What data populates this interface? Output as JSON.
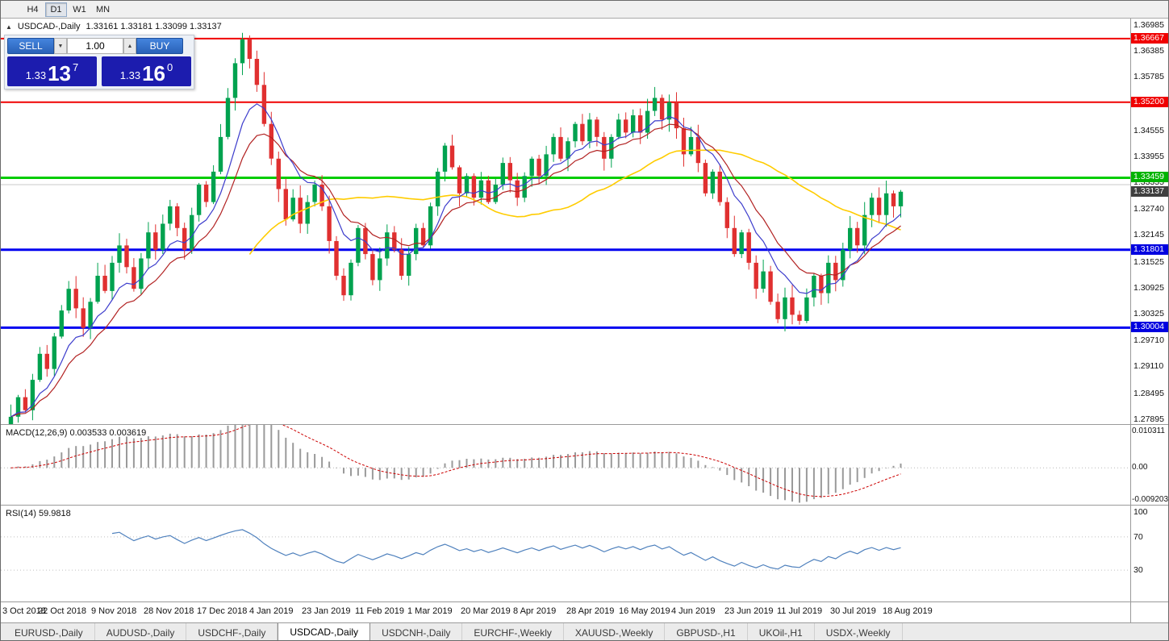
{
  "window": {
    "timeframes": [
      "H4",
      "D1",
      "W1",
      "MN"
    ],
    "active_timeframe": "D1"
  },
  "chart_header": {
    "collapse_icon": "▲",
    "title": "USDCAD-,Daily",
    "quotes": "1.33161 1.33181 1.33099 1.33137"
  },
  "trade_panel": {
    "sell_label": "SELL",
    "buy_label": "BUY",
    "volume": "1.00",
    "sell_price": {
      "small": "1.33",
      "big": "13",
      "sup": "7"
    },
    "buy_price": {
      "small": "1.33",
      "big": "16",
      "sup": "0"
    }
  },
  "price_axis": {
    "ticks": [
      "1.36985",
      "1.36385",
      "1.35785",
      "1.35185",
      "1.34555",
      "1.33955",
      "1.33355",
      "1.32740",
      "1.32145",
      "1.31525",
      "1.30925",
      "1.30325",
      "1.29710",
      "1.29110",
      "1.28495",
      "1.27895"
    ],
    "level_labels": [
      {
        "text": "1.36667",
        "value": 1.36667,
        "bg": "#f00000"
      },
      {
        "text": "1.35200",
        "value": 1.352,
        "bg": "#f00000"
      },
      {
        "text": "1.33459",
        "value": 1.33459,
        "bg": "#00b400"
      },
      {
        "text": "1.33137",
        "value": 1.33137,
        "bg": "#3f3f3f"
      },
      {
        "text": "1.31801",
        "value": 1.31801,
        "bg": "#0000e0"
      },
      {
        "text": "1.30004",
        "value": 1.30004,
        "bg": "#0000e0"
      }
    ]
  },
  "hlines": [
    {
      "value": 1.36667,
      "color": "#f00000",
      "w": 2
    },
    {
      "value": 1.352,
      "color": "#f00000",
      "w": 2
    },
    {
      "value": 1.33459,
      "color": "#00cc00",
      "w": 3
    },
    {
      "value": 1.333,
      "color": "#c8c8c8",
      "w": 1
    },
    {
      "value": 1.31801,
      "color": "#0000f0",
      "w": 3
    },
    {
      "value": 1.30004,
      "color": "#0000f0",
      "w": 3
    }
  ],
  "chart_data": {
    "type": "candlestick",
    "symbol": "USDCAD",
    "timeframe": "Daily",
    "ohlc_current": {
      "open": 1.33161,
      "high": 1.33181,
      "low": 1.33099,
      "close": 1.33137
    },
    "y_range": [
      1.2778,
      1.3713
    ],
    "closes": [
      1.2795,
      1.284,
      1.281,
      1.288,
      1.294,
      1.2905,
      1.298,
      1.304,
      1.309,
      1.3045,
      1.3,
      1.306,
      1.312,
      1.3085,
      1.315,
      1.319,
      1.314,
      1.309,
      1.316,
      1.322,
      1.318,
      1.324,
      1.328,
      1.323,
      1.318,
      1.326,
      1.333,
      1.329,
      1.336,
      1.344,
      1.353,
      1.361,
      1.3665,
      1.362,
      1.356,
      1.347,
      1.339,
      1.332,
      1.325,
      1.33,
      1.324,
      1.329,
      1.333,
      1.328,
      1.32,
      1.312,
      1.3075,
      1.315,
      1.323,
      1.317,
      1.311,
      1.316,
      1.322,
      1.318,
      1.312,
      1.317,
      1.323,
      1.319,
      1.328,
      1.336,
      1.342,
      1.337,
      1.331,
      1.335,
      1.33,
      1.334,
      1.329,
      1.333,
      1.338,
      1.334,
      1.33,
      1.335,
      1.339,
      1.335,
      1.34,
      1.344,
      1.339,
      1.343,
      1.347,
      1.343,
      1.348,
      1.344,
      1.339,
      1.344,
      1.348,
      1.345,
      1.349,
      1.345,
      1.35,
      1.353,
      1.348,
      1.352,
      1.346,
      1.34,
      1.344,
      1.338,
      1.331,
      1.336,
      1.329,
      1.323,
      1.317,
      1.322,
      1.315,
      1.309,
      1.313,
      1.306,
      1.302,
      1.307,
      1.303,
      1.3016,
      1.307,
      1.312,
      1.308,
      1.315,
      1.311,
      1.318,
      1.323,
      1.319,
      1.326,
      1.33,
      1.326,
      1.331,
      1.328,
      1.33137
    ],
    "dates": [
      "3 Oct 2018",
      "22 Oct 2018",
      "9 Nov 2018",
      "28 Nov 2018",
      "17 Dec 2018",
      "4 Jan 2019",
      "23 Jan 2019",
      "11 Feb 2019",
      "1 Mar 2019",
      "20 Mar 2019",
      "8 Apr 2019",
      "28 Apr 2019",
      "16 May 2019",
      "4 Jun 2019",
      "23 Jun 2019",
      "11 Jul 2019",
      "30 Jul 2019",
      "18 Aug 2019"
    ]
  },
  "macd_panel": {
    "label": "MACD(12,26,9) 0.003533 0.003619",
    "axis": [
      {
        "text": "0.010311",
        "value": 0.010311
      },
      {
        "text": "0.00",
        "value": 0
      },
      {
        "text": "-0.009203",
        "value": -0.009203
      }
    ],
    "y_range": [
      -0.0105,
      0.0122
    ]
  },
  "rsi_panel": {
    "label": "RSI(14) 59.9818",
    "axis": [
      {
        "text": "100",
        "value": 100
      },
      {
        "text": "70",
        "value": 70
      },
      {
        "text": "30",
        "value": 30
      }
    ],
    "levels": [
      70,
      30
    ]
  },
  "tabs": [
    {
      "label": "EURUSD-,Daily"
    },
    {
      "label": "AUDUSD-,Daily"
    },
    {
      "label": "USDCHF-,Daily"
    },
    {
      "label": "USDCAD-,Daily",
      "active": true
    },
    {
      "label": "USDCNH-,Daily"
    },
    {
      "label": "EURCHF-,Weekly"
    },
    {
      "label": "XAUUSD-,Weekly"
    },
    {
      "label": "GBPUSD-,H1"
    },
    {
      "label": "UKOil-,H1"
    },
    {
      "label": "USDX-,Weekly"
    }
  ],
  "colors": {
    "up": "#00a24f",
    "down": "#e03030",
    "ma_fast": "#3c3ccc",
    "ma_mid": "#b22222",
    "ma_slow": "#ffcc00",
    "macd_hist": "#9a9a9a",
    "macd_signal": "#cc0000",
    "rsi_line": "#4f81bd",
    "level_red": "#f00000",
    "level_green": "#00cc00",
    "level_blue": "#0000f0"
  },
  "spinners": {
    "down_icon": "▼",
    "up_icon": "▲"
  }
}
